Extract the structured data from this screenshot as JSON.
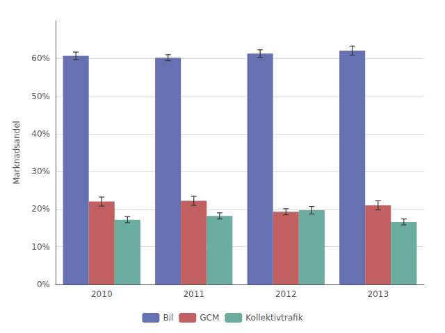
{
  "chart_data": {
    "type": "bar",
    "ylabel": "Marknadsandel",
    "categories": [
      "2010",
      "2011",
      "2012",
      "2013"
    ],
    "series": [
      {
        "name": "Bil",
        "color": "#6671B2",
        "values": [
          0.607,
          0.602,
          0.613,
          0.621
        ],
        "errors": [
          0.01,
          0.008,
          0.01,
          0.012
        ]
      },
      {
        "name": "GCM",
        "color": "#C06060",
        "values": [
          0.22,
          0.222,
          0.193,
          0.21
        ],
        "errors": [
          0.012,
          0.012,
          0.008,
          0.012
        ]
      },
      {
        "name": "Kollektivtrafik",
        "color": "#6BADA0",
        "values": [
          0.172,
          0.182,
          0.197,
          0.166
        ],
        "errors": [
          0.008,
          0.008,
          0.01,
          0.008
        ]
      }
    ],
    "ylim": [
      0,
      0.7
    ],
    "yticks": [
      {
        "value": 0.0,
        "label": "0%"
      },
      {
        "value": 0.1,
        "label": "10%"
      },
      {
        "value": 0.2,
        "label": "20%"
      },
      {
        "value": 0.3,
        "label": "30%"
      },
      {
        "value": 0.4,
        "label": "40%"
      },
      {
        "value": 0.5,
        "label": "50%"
      },
      {
        "value": 0.6,
        "label": "60%"
      }
    ],
    "grid": true,
    "legend": "bottom"
  }
}
